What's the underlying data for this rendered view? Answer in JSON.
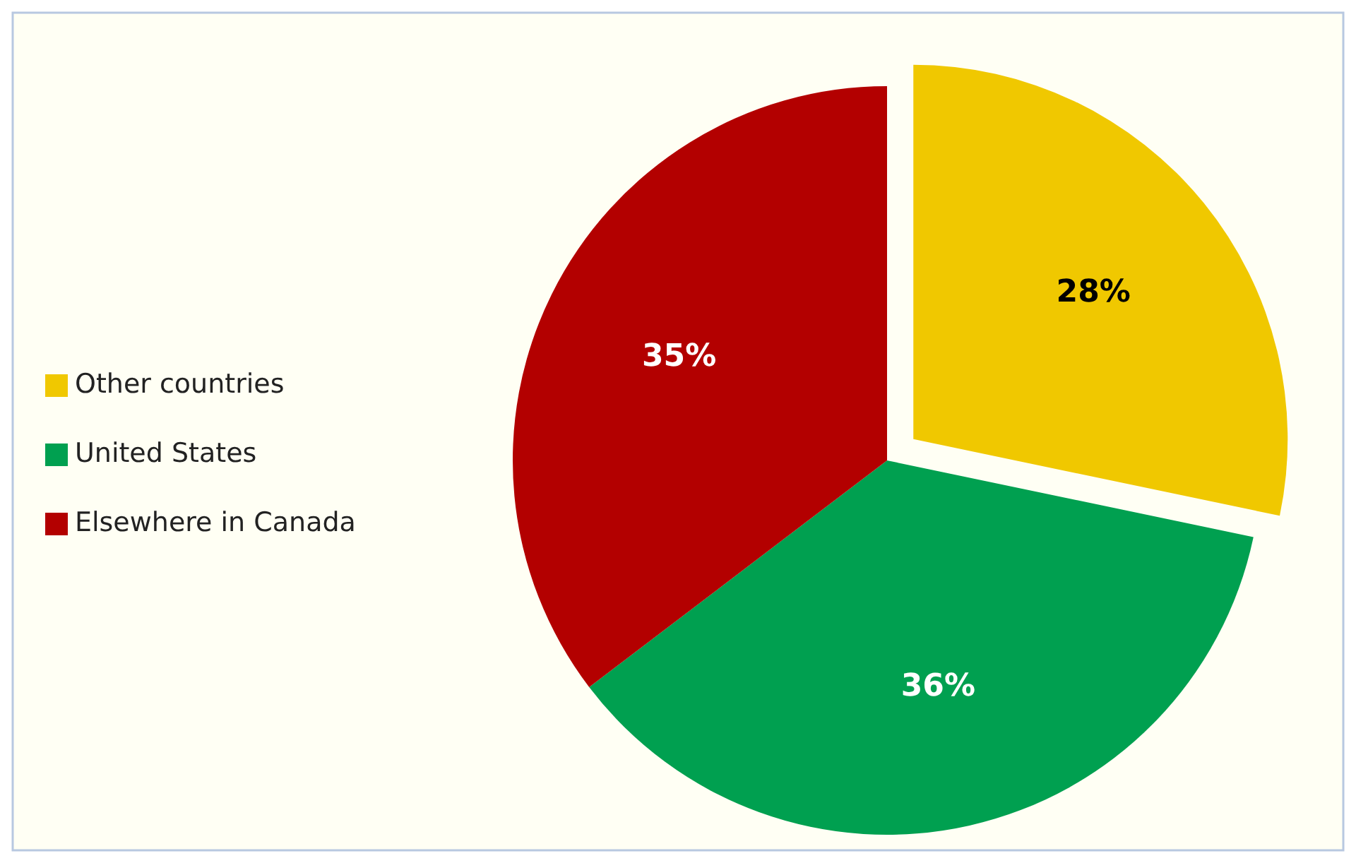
{
  "chart_data": {
    "type": "pie",
    "categories": [
      "Other countries",
      "United States",
      "Elsewhere in Canada"
    ],
    "values": [
      28,
      36,
      35
    ],
    "value_labels": [
      "28%",
      "36%",
      "35%"
    ],
    "colors": [
      "#f0c800",
      "#00a050",
      "#b30000"
    ],
    "legend": "left"
  }
}
